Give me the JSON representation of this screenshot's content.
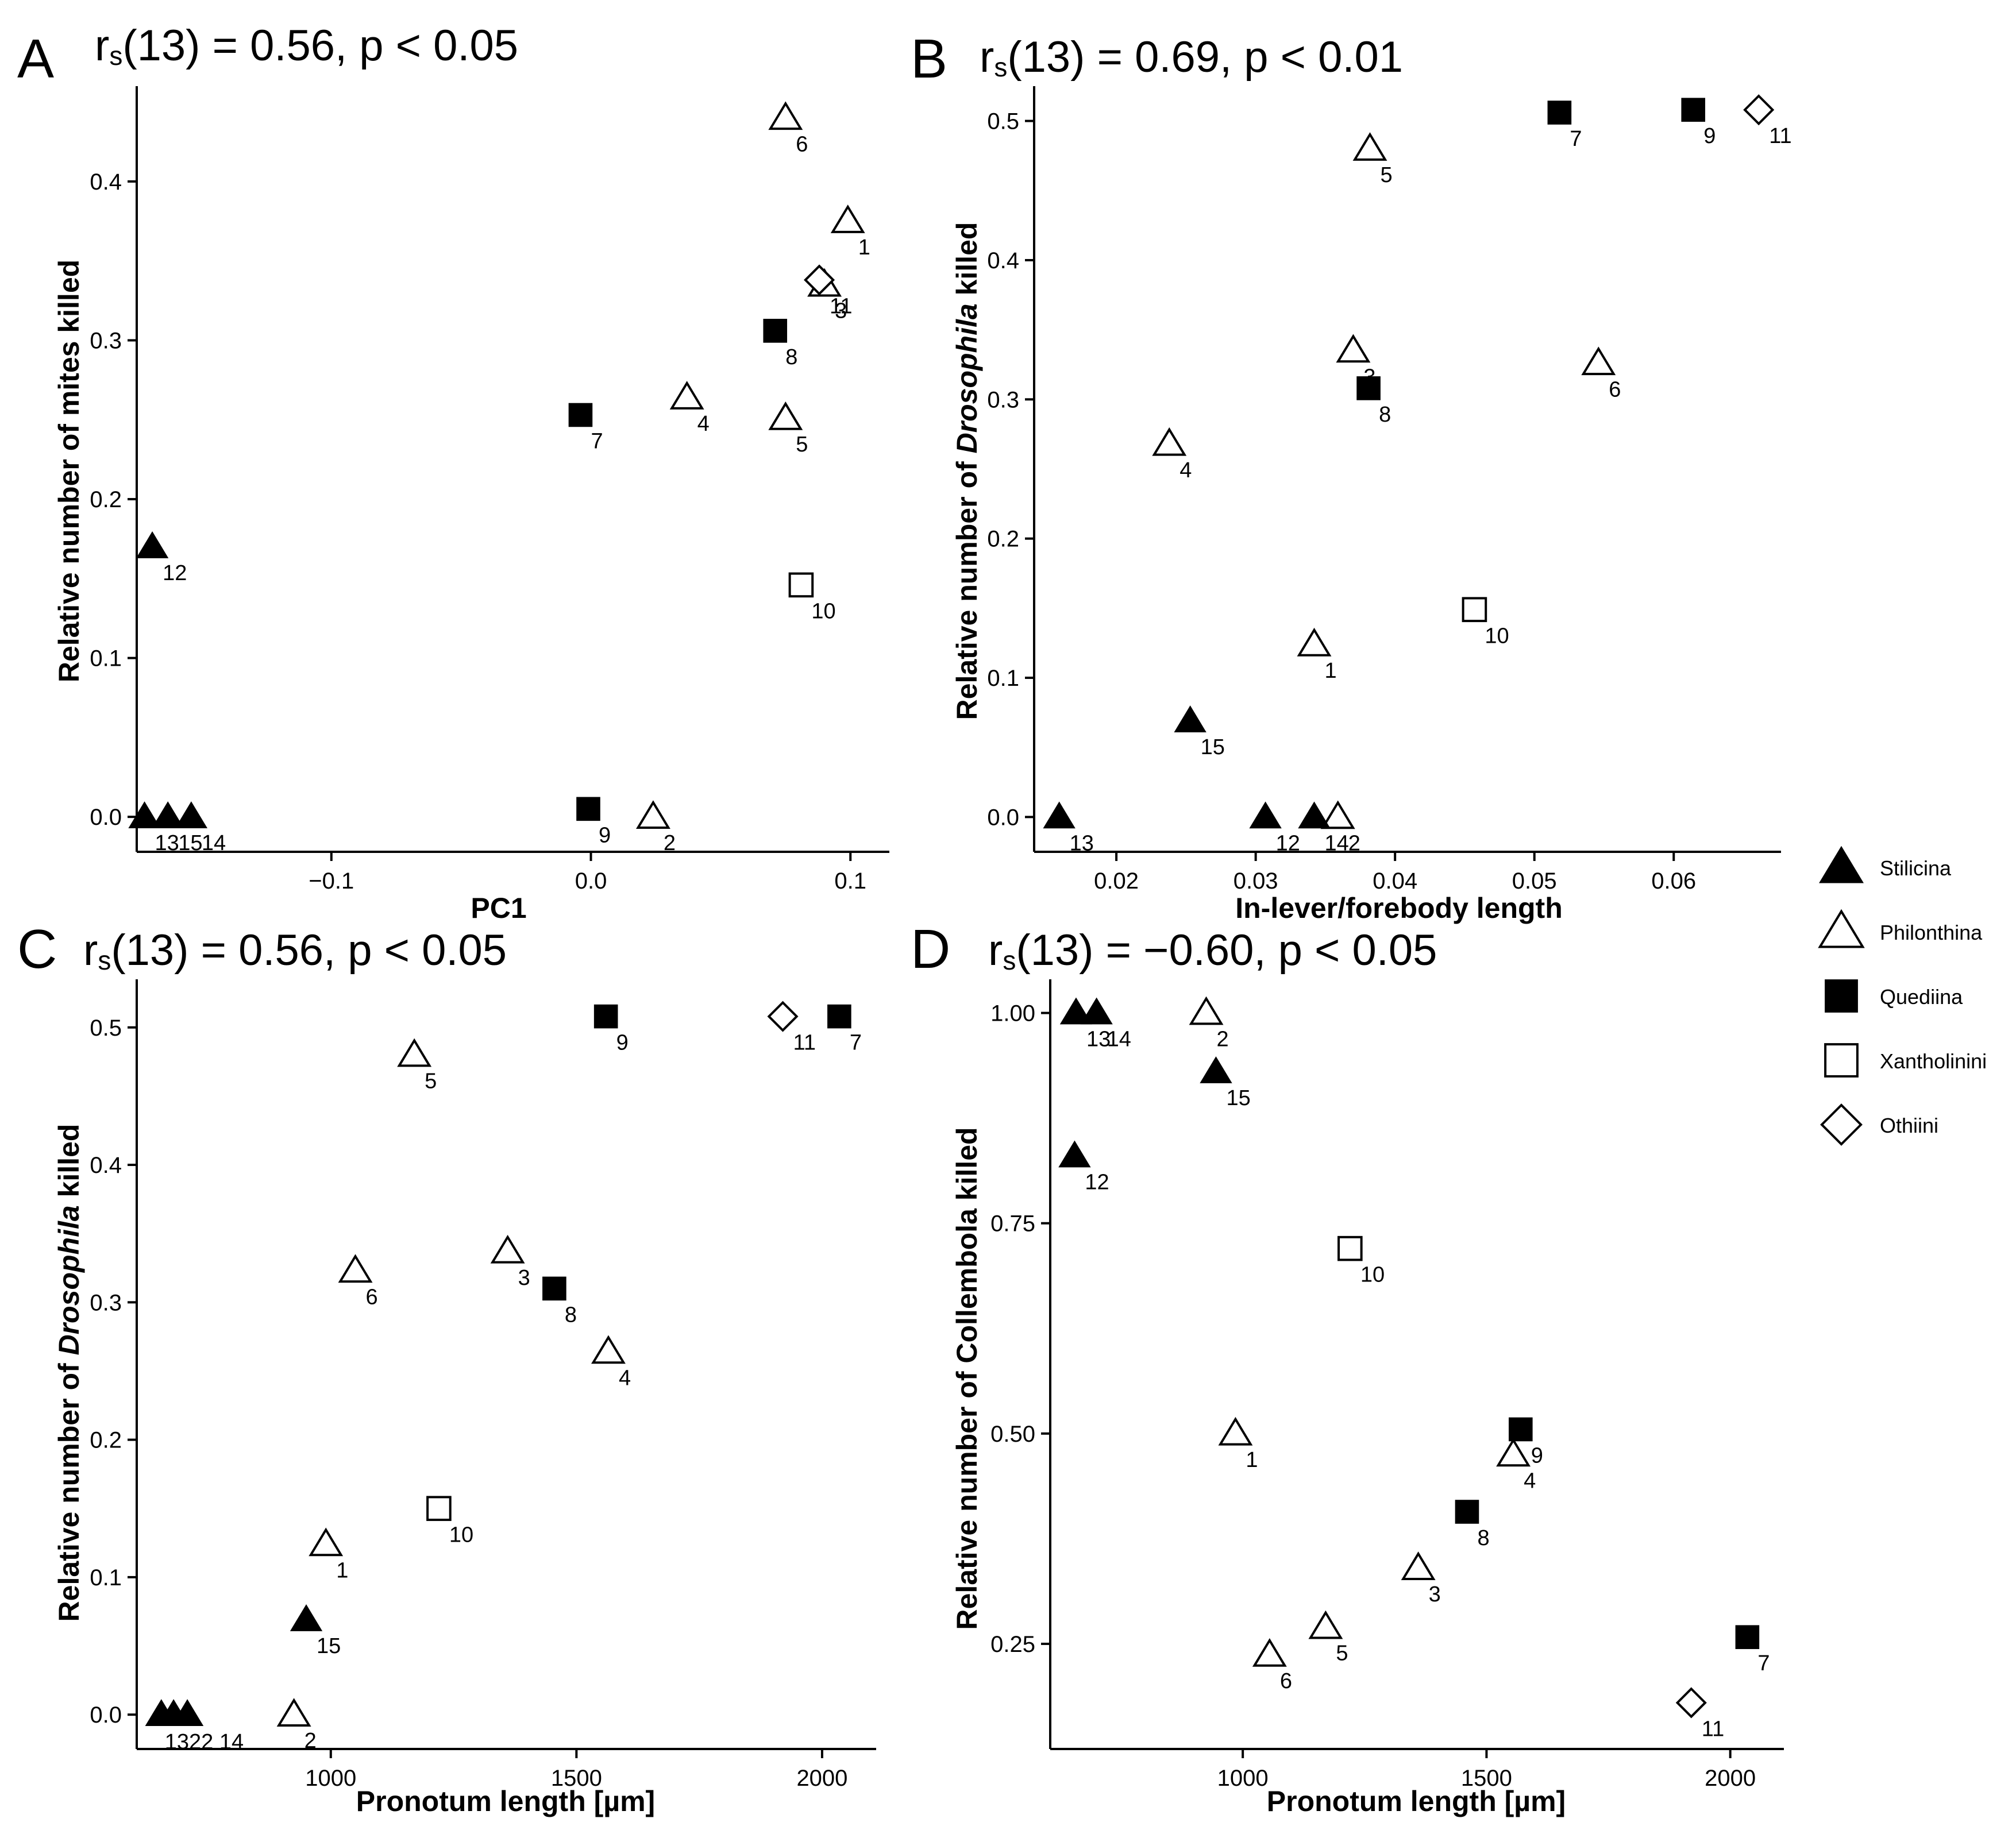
{
  "legend": {
    "entries": [
      {
        "label": "Stilicina",
        "marker": "triangle-filled"
      },
      {
        "label": "Philonthina",
        "marker": "triangle-open"
      },
      {
        "label": "Quediina",
        "marker": "square-filled"
      },
      {
        "label": "Xantholinini",
        "marker": "square-open"
      },
      {
        "label": "Othiini",
        "marker": "diamond-open"
      }
    ]
  },
  "chart_data": [
    {
      "panel": "A",
      "type": "scatter",
      "title_pre": "r",
      "title_sub": "s",
      "title_post": "(13) = 0.56, p < 0.05",
      "xlabel": "PC1",
      "ylabel": "Relative number of mites killed",
      "xlim": [
        -0.175,
        0.115
      ],
      "ylim": [
        -0.022,
        0.46
      ],
      "xticks": [
        -0.1,
        0.0,
        0.1
      ],
      "xtick_labels": [
        "−0.1",
        "0.0",
        "0.1"
      ],
      "yticks": [
        0.0,
        0.1,
        0.2,
        0.3,
        0.4
      ],
      "ytick_labels": [
        "0.0",
        "0.1",
        "0.2",
        "0.3",
        "0.4"
      ],
      "points": [
        {
          "id": "1",
          "x": 0.099,
          "y": 0.375,
          "group": "Philonthina",
          "label_pos": "br"
        },
        {
          "id": "2",
          "x": 0.024,
          "y": 0.0,
          "group": "Philonthina",
          "label_pos": "br"
        },
        {
          "id": "3",
          "x": 0.09,
          "y": 0.335,
          "group": "Philonthina",
          "label_pos": "br"
        },
        {
          "id": "4",
          "x": 0.037,
          "y": 0.264,
          "group": "Philonthina",
          "label_pos": "br"
        },
        {
          "id": "5",
          "x": 0.075,
          "y": 0.251,
          "group": "Philonthina",
          "label_pos": "br"
        },
        {
          "id": "6",
          "x": 0.075,
          "y": 0.44,
          "group": "Philonthina",
          "label_pos": "br"
        },
        {
          "id": "7",
          "x": -0.004,
          "y": 0.253,
          "group": "Quediina",
          "label_pos": "br"
        },
        {
          "id": "8",
          "x": 0.071,
          "y": 0.306,
          "group": "Quediina",
          "label_pos": "br"
        },
        {
          "id": "9",
          "x": -0.001,
          "y": 0.005,
          "group": "Quediina",
          "label_pos": "br"
        },
        {
          "id": "10",
          "x": 0.081,
          "y": 0.146,
          "group": "Xantholinini",
          "label_pos": "br"
        },
        {
          "id": "11",
          "x": 0.088,
          "y": 0.338,
          "group": "Othiini",
          "label_pos": "br"
        },
        {
          "id": "12",
          "x": -0.169,
          "y": 0.17,
          "group": "Stilicina",
          "label_pos": "br"
        },
        {
          "id": "13",
          "x": -0.172,
          "y": 0.0,
          "group": "Stilicina",
          "label_pos": "br"
        },
        {
          "id": "15",
          "x": -0.163,
          "y": 0.0,
          "group": "Stilicina",
          "label_pos": "br"
        },
        {
          "id": "14",
          "x": -0.154,
          "y": 0.0,
          "group": "Stilicina",
          "label_pos": "br"
        }
      ]
    },
    {
      "panel": "B",
      "type": "scatter",
      "title_pre": "r",
      "title_sub": "s",
      "title_post": "(13) = 0.69, p < 0.01",
      "xlabel": "In-lever/forebody length",
      "ylabel_pre": "Relative number of ",
      "ylabel_italic": "Drosophila",
      "ylabel_post": " killed",
      "xlim": [
        0.0141,
        0.0677
      ],
      "ylim": [
        -0.025,
        0.525
      ],
      "xticks": [
        0.02,
        0.03,
        0.04,
        0.05,
        0.06
      ],
      "xtick_labels": [
        "0.02",
        "0.03",
        "0.04",
        "0.05",
        "0.06"
      ],
      "yticks": [
        0.0,
        0.1,
        0.2,
        0.3,
        0.4,
        0.5
      ],
      "ytick_labels": [
        "0.0",
        "0.1",
        "0.2",
        "0.3",
        "0.4",
        "0.5"
      ],
      "points": [
        {
          "id": "1",
          "x": 0.0342,
          "y": 0.124,
          "group": "Philonthina",
          "label_pos": "br"
        },
        {
          "id": "2",
          "x": 0.0359,
          "y": 0.0,
          "group": "Philonthina",
          "label_pos": "br"
        },
        {
          "id": "3",
          "x": 0.037,
          "y": 0.335,
          "group": "Philonthina",
          "label_pos": "br"
        },
        {
          "id": "4",
          "x": 0.0238,
          "y": 0.268,
          "group": "Philonthina",
          "label_pos": "br"
        },
        {
          "id": "5",
          "x": 0.0382,
          "y": 0.48,
          "group": "Philonthina",
          "label_pos": "br"
        },
        {
          "id": "6",
          "x": 0.0546,
          "y": 0.326,
          "group": "Philonthina",
          "label_pos": "br"
        },
        {
          "id": "7",
          "x": 0.0518,
          "y": 0.506,
          "group": "Quediina",
          "label_pos": "br"
        },
        {
          "id": "8",
          "x": 0.0381,
          "y": 0.308,
          "group": "Quediina",
          "label_pos": "br"
        },
        {
          "id": "9",
          "x": 0.0614,
          "y": 0.508,
          "group": "Quediina",
          "label_pos": "br"
        },
        {
          "id": "10",
          "x": 0.0457,
          "y": 0.149,
          "group": "Xantholinini",
          "label_pos": "br"
        },
        {
          "id": "11",
          "x": 0.0661,
          "y": 0.508,
          "group": "Othiini",
          "label_pos": "br"
        },
        {
          "id": "12",
          "x": 0.0307,
          "y": 0.0,
          "group": "Stilicina",
          "label_pos": "br"
        },
        {
          "id": "13",
          "x": 0.0159,
          "y": 0.0,
          "group": "Stilicina",
          "label_pos": "br"
        },
        {
          "id": "14",
          "x": 0.0342,
          "y": 0.0,
          "group": "Stilicina",
          "label_pos": "br"
        },
        {
          "id": "15",
          "x": 0.0253,
          "y": 0.069,
          "group": "Stilicina",
          "label_pos": "br"
        }
      ]
    },
    {
      "panel": "C",
      "type": "scatter",
      "title_pre": "r",
      "title_sub": "s",
      "title_post": "(13) = 0.56, p < 0.05",
      "xlabel": "Pronotum length [µm]",
      "ylabel_pre": "Relative number of ",
      "ylabel_italic": "Drosophila",
      "ylabel_post": " killed",
      "xlim": [
        605,
        2110
      ],
      "ylim": [
        -0.025,
        0.535
      ],
      "xticks": [
        1000,
        1500,
        2000
      ],
      "xtick_labels": [
        "1000",
        "1500",
        "2000"
      ],
      "yticks": [
        0.0,
        0.1,
        0.2,
        0.3,
        0.4,
        0.5
      ],
      "ytick_labels": [
        "0.0",
        "0.1",
        "0.2",
        "0.3",
        "0.4",
        "0.5"
      ],
      "points": [
        {
          "id": "1",
          "x": 990,
          "y": 0.124,
          "group": "Philonthina",
          "label_pos": "br"
        },
        {
          "id": "2",
          "x": 925,
          "y": 0.0,
          "group": "Philonthina",
          "label_pos": "br"
        },
        {
          "id": "3",
          "x": 1360,
          "y": 0.337,
          "group": "Philonthina",
          "label_pos": "br"
        },
        {
          "id": "4",
          "x": 1565,
          "y": 0.264,
          "group": "Philonthina",
          "label_pos": "br"
        },
        {
          "id": "5",
          "x": 1170,
          "y": 0.48,
          "group": "Philonthina",
          "label_pos": "br"
        },
        {
          "id": "6",
          "x": 1050,
          "y": 0.323,
          "group": "Philonthina",
          "label_pos": "br"
        },
        {
          "id": "7",
          "x": 2035,
          "y": 0.508,
          "group": "Quediina",
          "label_pos": "br"
        },
        {
          "id": "8",
          "x": 1455,
          "y": 0.31,
          "group": "Quediina",
          "label_pos": "br"
        },
        {
          "id": "9",
          "x": 1560,
          "y": 0.508,
          "group": "Quediina",
          "label_pos": "br"
        },
        {
          "id": "10",
          "x": 1220,
          "y": 0.15,
          "group": "Xantholinini",
          "label_pos": "br"
        },
        {
          "id": "11",
          "x": 1920,
          "y": 0.508,
          "group": "Othiini",
          "label_pos": "br"
        },
        {
          "id": "13",
          "x": 655,
          "y": 0.0,
          "group": "Stilicina",
          "label_pos": "br"
        },
        {
          "id": "12",
          "x": 680,
          "y": 0.0,
          "group": "Stilicina",
          "label_pos": "br"
        },
        {
          "id": "14",
          "x": 708,
          "y": 0.0,
          "group": "Stilicina",
          "label_pos": "br"
        },
        {
          "id": "15",
          "x": 950,
          "y": 0.069,
          "group": "Stilicina",
          "label_pos": "br"
        }
      ],
      "point_label_text": "1322 14"
    },
    {
      "panel": "D",
      "type": "scatter",
      "title_pre": "r",
      "title_sub": "s",
      "title_post": "(13) = −0.60, p < 0.05",
      "xlabel": "Pronotum length [µm]",
      "ylabel": "Relative number of Collembola killed",
      "xlim": [
        605,
        2110
      ],
      "ylim": [
        0.125,
        1.04
      ],
      "xticks": [
        1000,
        1500,
        2000
      ],
      "xtick_labels": [
        "1000",
        "1500",
        "2000"
      ],
      "yticks": [
        0.25,
        0.5,
        0.75,
        1.0
      ],
      "ytick_labels": [
        "0.25",
        "0.50",
        "0.75",
        "1.00"
      ],
      "points": [
        {
          "id": "1",
          "x": 985,
          "y": 0.5,
          "group": "Philonthina",
          "label_pos": "br"
        },
        {
          "id": "2",
          "x": 925,
          "y": 1.0,
          "group": "Philonthina",
          "label_pos": "br"
        },
        {
          "id": "3",
          "x": 1360,
          "y": 0.34,
          "group": "Philonthina",
          "label_pos": "br"
        },
        {
          "id": "4",
          "x": 1555,
          "y": 0.475,
          "group": "Philonthina",
          "label_pos": "br"
        },
        {
          "id": "5",
          "x": 1170,
          "y": 0.27,
          "group": "Philonthina",
          "label_pos": "br"
        },
        {
          "id": "6",
          "x": 1055,
          "y": 0.237,
          "group": "Philonthina",
          "label_pos": "br"
        },
        {
          "id": "7",
          "x": 2035,
          "y": 0.258,
          "group": "Quediina",
          "label_pos": "br"
        },
        {
          "id": "8",
          "x": 1460,
          "y": 0.407,
          "group": "Quediina",
          "label_pos": "br"
        },
        {
          "id": "9",
          "x": 1570,
          "y": 0.505,
          "group": "Quediina",
          "label_pos": "br"
        },
        {
          "id": "10",
          "x": 1220,
          "y": 0.72,
          "group": "Xantholinini",
          "label_pos": "br"
        },
        {
          "id": "11",
          "x": 1920,
          "y": 0.18,
          "group": "Othiini",
          "label_pos": "br"
        },
        {
          "id": "12",
          "x": 655,
          "y": 0.83,
          "group": "Stilicina",
          "label_pos": "br"
        },
        {
          "id": "13",
          "x": 658,
          "y": 1.0,
          "group": "Stilicina",
          "label_pos": "br"
        },
        {
          "id": "14",
          "x": 700,
          "y": 1.0,
          "group": "Stilicina",
          "label_pos": "br"
        },
        {
          "id": "15",
          "x": 945,
          "y": 0.93,
          "group": "Stilicina",
          "label_pos": "br"
        }
      ]
    }
  ],
  "panel_letters": [
    "A",
    "B",
    "C",
    "D"
  ]
}
